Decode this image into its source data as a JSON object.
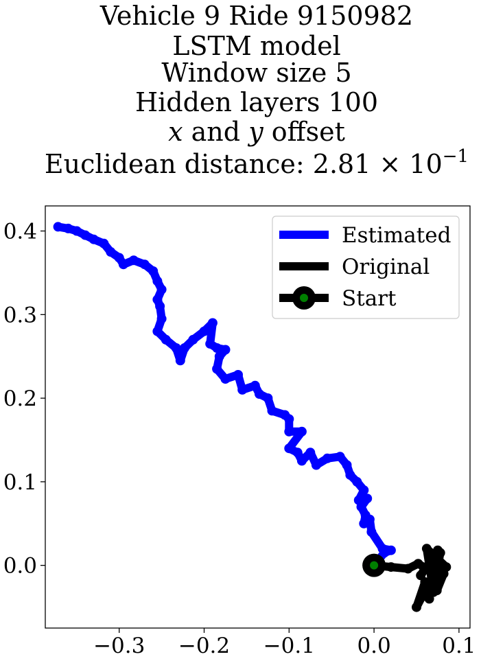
{
  "title": {
    "line1": "Vehicle 9 Ride 9150982",
    "line2": "LSTM model",
    "line3": "Window size 5",
    "line4": "Hidden layers 100",
    "line5_x": "x",
    "line5_mid": " and ",
    "line5_y": "y",
    "line5_rest": " offset",
    "line6_text": "Euclidean distance: 2.81",
    "line6_times": " × 10",
    "line6_exp": "−1"
  },
  "legend": {
    "estimated": "Estimated",
    "original": "Original",
    "start": "Start"
  },
  "colors": {
    "estimated": "#0000ff",
    "original": "#000000",
    "start_marker": "#000000",
    "start_dot": "#008000"
  },
  "chart_data": {
    "type": "line",
    "xlim": [
      -0.387,
      0.113
    ],
    "ylim": [
      -0.075,
      0.43
    ],
    "xticks": [
      -0.3,
      -0.2,
      -0.1,
      0.0,
      0.1
    ],
    "xtick_labels": [
      "−0.3",
      "−0.2",
      "−0.1",
      "0.0",
      "0.1"
    ],
    "yticks": [
      0.0,
      0.1,
      0.2,
      0.3,
      0.4
    ],
    "ytick_labels": [
      "0.0",
      "0.1",
      "0.2",
      "0.3",
      "0.4"
    ],
    "grid": false,
    "legend_position": "top-right",
    "series": [
      {
        "name": "Estimated",
        "points": [
          [
            0.0,
            0.0
          ],
          [
            0.012,
            0.015
          ],
          [
            0.02,
            0.018
          ],
          [
            0.01,
            0.02
          ],
          [
            -0.003,
            0.04
          ],
          [
            -0.005,
            0.055
          ],
          [
            -0.012,
            0.05
          ],
          [
            -0.01,
            0.06
          ],
          [
            -0.015,
            0.07
          ],
          [
            -0.008,
            0.08
          ],
          [
            -0.018,
            0.078
          ],
          [
            -0.012,
            0.09
          ],
          [
            -0.02,
            0.1
          ],
          [
            -0.028,
            0.108
          ],
          [
            -0.032,
            0.12
          ],
          [
            -0.04,
            0.13
          ],
          [
            -0.055,
            0.128
          ],
          [
            -0.068,
            0.12
          ],
          [
            -0.075,
            0.135
          ],
          [
            -0.085,
            0.125
          ],
          [
            -0.09,
            0.135
          ],
          [
            -0.1,
            0.14
          ],
          [
            -0.085,
            0.16
          ],
          [
            -0.1,
            0.16
          ],
          [
            -0.1,
            0.175
          ],
          [
            -0.105,
            0.18
          ],
          [
            -0.12,
            0.185
          ],
          [
            -0.125,
            0.2
          ],
          [
            -0.135,
            0.205
          ],
          [
            -0.14,
            0.215
          ],
          [
            -0.155,
            0.21
          ],
          [
            -0.16,
            0.228
          ],
          [
            -0.175,
            0.223
          ],
          [
            -0.185,
            0.235
          ],
          [
            -0.182,
            0.25
          ],
          [
            -0.175,
            0.258
          ],
          [
            -0.185,
            0.26
          ],
          [
            -0.193,
            0.265
          ],
          [
            -0.19,
            0.29
          ],
          [
            -0.2,
            0.28
          ],
          [
            -0.213,
            0.27
          ],
          [
            -0.223,
            0.26
          ],
          [
            -0.228,
            0.245
          ],
          [
            -0.233,
            0.26
          ],
          [
            -0.245,
            0.27
          ],
          [
            -0.255,
            0.28
          ],
          [
            -0.25,
            0.295
          ],
          [
            -0.252,
            0.31
          ],
          [
            -0.255,
            0.318
          ],
          [
            -0.25,
            0.33
          ],
          [
            -0.255,
            0.34
          ],
          [
            -0.26,
            0.352
          ],
          [
            -0.27,
            0.36
          ],
          [
            -0.283,
            0.365
          ],
          [
            -0.295,
            0.36
          ],
          [
            -0.3,
            0.368
          ],
          [
            -0.31,
            0.375
          ],
          [
            -0.318,
            0.385
          ],
          [
            -0.33,
            0.39
          ],
          [
            -0.34,
            0.395
          ],
          [
            -0.35,
            0.4
          ],
          [
            -0.36,
            0.403
          ],
          [
            -0.372,
            0.405
          ]
        ]
      },
      {
        "name": "Original",
        "points": [
          [
            0.0,
            0.0
          ],
          [
            0.02,
            -0.002
          ],
          [
            0.04,
            -0.004
          ],
          [
            0.052,
            0.002
          ],
          [
            0.06,
            -0.003
          ],
          [
            0.055,
            -0.012
          ],
          [
            0.075,
            0.018
          ],
          [
            0.07,
            -0.032
          ],
          [
            0.062,
            0.02
          ],
          [
            0.085,
            -0.002
          ],
          [
            0.072,
            0.01
          ],
          [
            0.065,
            -0.04
          ],
          [
            0.058,
            -0.035
          ],
          [
            0.07,
            -0.028
          ],
          [
            0.078,
            0.015
          ],
          [
            0.068,
            -0.015
          ],
          [
            0.05,
            -0.05
          ],
          [
            0.06,
            -0.02
          ],
          [
            0.074,
            -0.03
          ],
          [
            0.082,
            -0.01
          ],
          [
            0.066,
            0.005
          ]
        ]
      }
    ],
    "start_point": [
      0.0,
      0.0
    ]
  }
}
